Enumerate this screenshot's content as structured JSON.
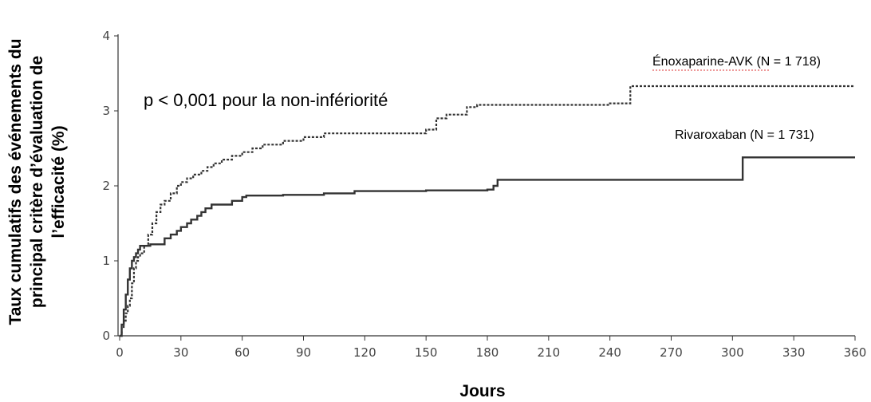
{
  "chart_data": {
    "type": "line",
    "title": "",
    "xlabel": "Jours",
    "ylabel_lines": [
      "Taux cumulatifs des événements du",
      "principal critère d’évaluation de",
      "l’efficacité (%)"
    ],
    "xlim": [
      0,
      360
    ],
    "ylim": [
      0,
      4
    ],
    "xticks": [
      0,
      30,
      60,
      90,
      120,
      150,
      180,
      210,
      240,
      270,
      300,
      330,
      360
    ],
    "yticks": [
      0,
      1,
      2,
      3,
      4
    ],
    "grid": false,
    "annotation": "p < 0,001 pour la non-infériorité",
    "series": [
      {
        "name": "Énoxaparine-AVK (N = 1 718)",
        "style": "dashed",
        "color": "#333333",
        "x": [
          0,
          1,
          2,
          3,
          4,
          5,
          6,
          7,
          8,
          9,
          10,
          12,
          14,
          16,
          18,
          20,
          22,
          25,
          28,
          30,
          33,
          36,
          40,
          43,
          46,
          50,
          55,
          60,
          65,
          70,
          80,
          90,
          100,
          120,
          150,
          155,
          160,
          170,
          175,
          200,
          240,
          250,
          300,
          360
        ],
        "y": [
          0,
          0.1,
          0.2,
          0.3,
          0.4,
          0.5,
          0.7,
          0.9,
          1.0,
          1.05,
          1.1,
          1.2,
          1.35,
          1.5,
          1.65,
          1.75,
          1.8,
          1.9,
          2.0,
          2.05,
          2.1,
          2.15,
          2.2,
          2.25,
          2.3,
          2.35,
          2.4,
          2.45,
          2.5,
          2.55,
          2.6,
          2.65,
          2.7,
          2.7,
          2.75,
          2.9,
          2.95,
          3.05,
          3.08,
          3.08,
          3.1,
          3.33,
          3.33,
          3.33
        ]
      },
      {
        "name": "Rivaroxaban (N = 1 731)",
        "style": "solid",
        "color": "#333333",
        "x": [
          0,
          1,
          2,
          3,
          4,
          5,
          6,
          7,
          8,
          9,
          10,
          15,
          20,
          22,
          25,
          28,
          30,
          33,
          35,
          38,
          40,
          42,
          45,
          50,
          55,
          60,
          62,
          80,
          100,
          115,
          150,
          180,
          183,
          185,
          200,
          250,
          300,
          305,
          360
        ],
        "y": [
          0,
          0.15,
          0.35,
          0.55,
          0.75,
          0.9,
          1.0,
          1.05,
          1.1,
          1.15,
          1.2,
          1.22,
          1.22,
          1.3,
          1.35,
          1.4,
          1.45,
          1.5,
          1.55,
          1.6,
          1.65,
          1.7,
          1.75,
          1.75,
          1.8,
          1.85,
          1.87,
          1.88,
          1.9,
          1.93,
          1.94,
          1.95,
          2.0,
          2.08,
          2.08,
          2.08,
          2.08,
          2.38,
          2.38
        ]
      }
    ]
  }
}
